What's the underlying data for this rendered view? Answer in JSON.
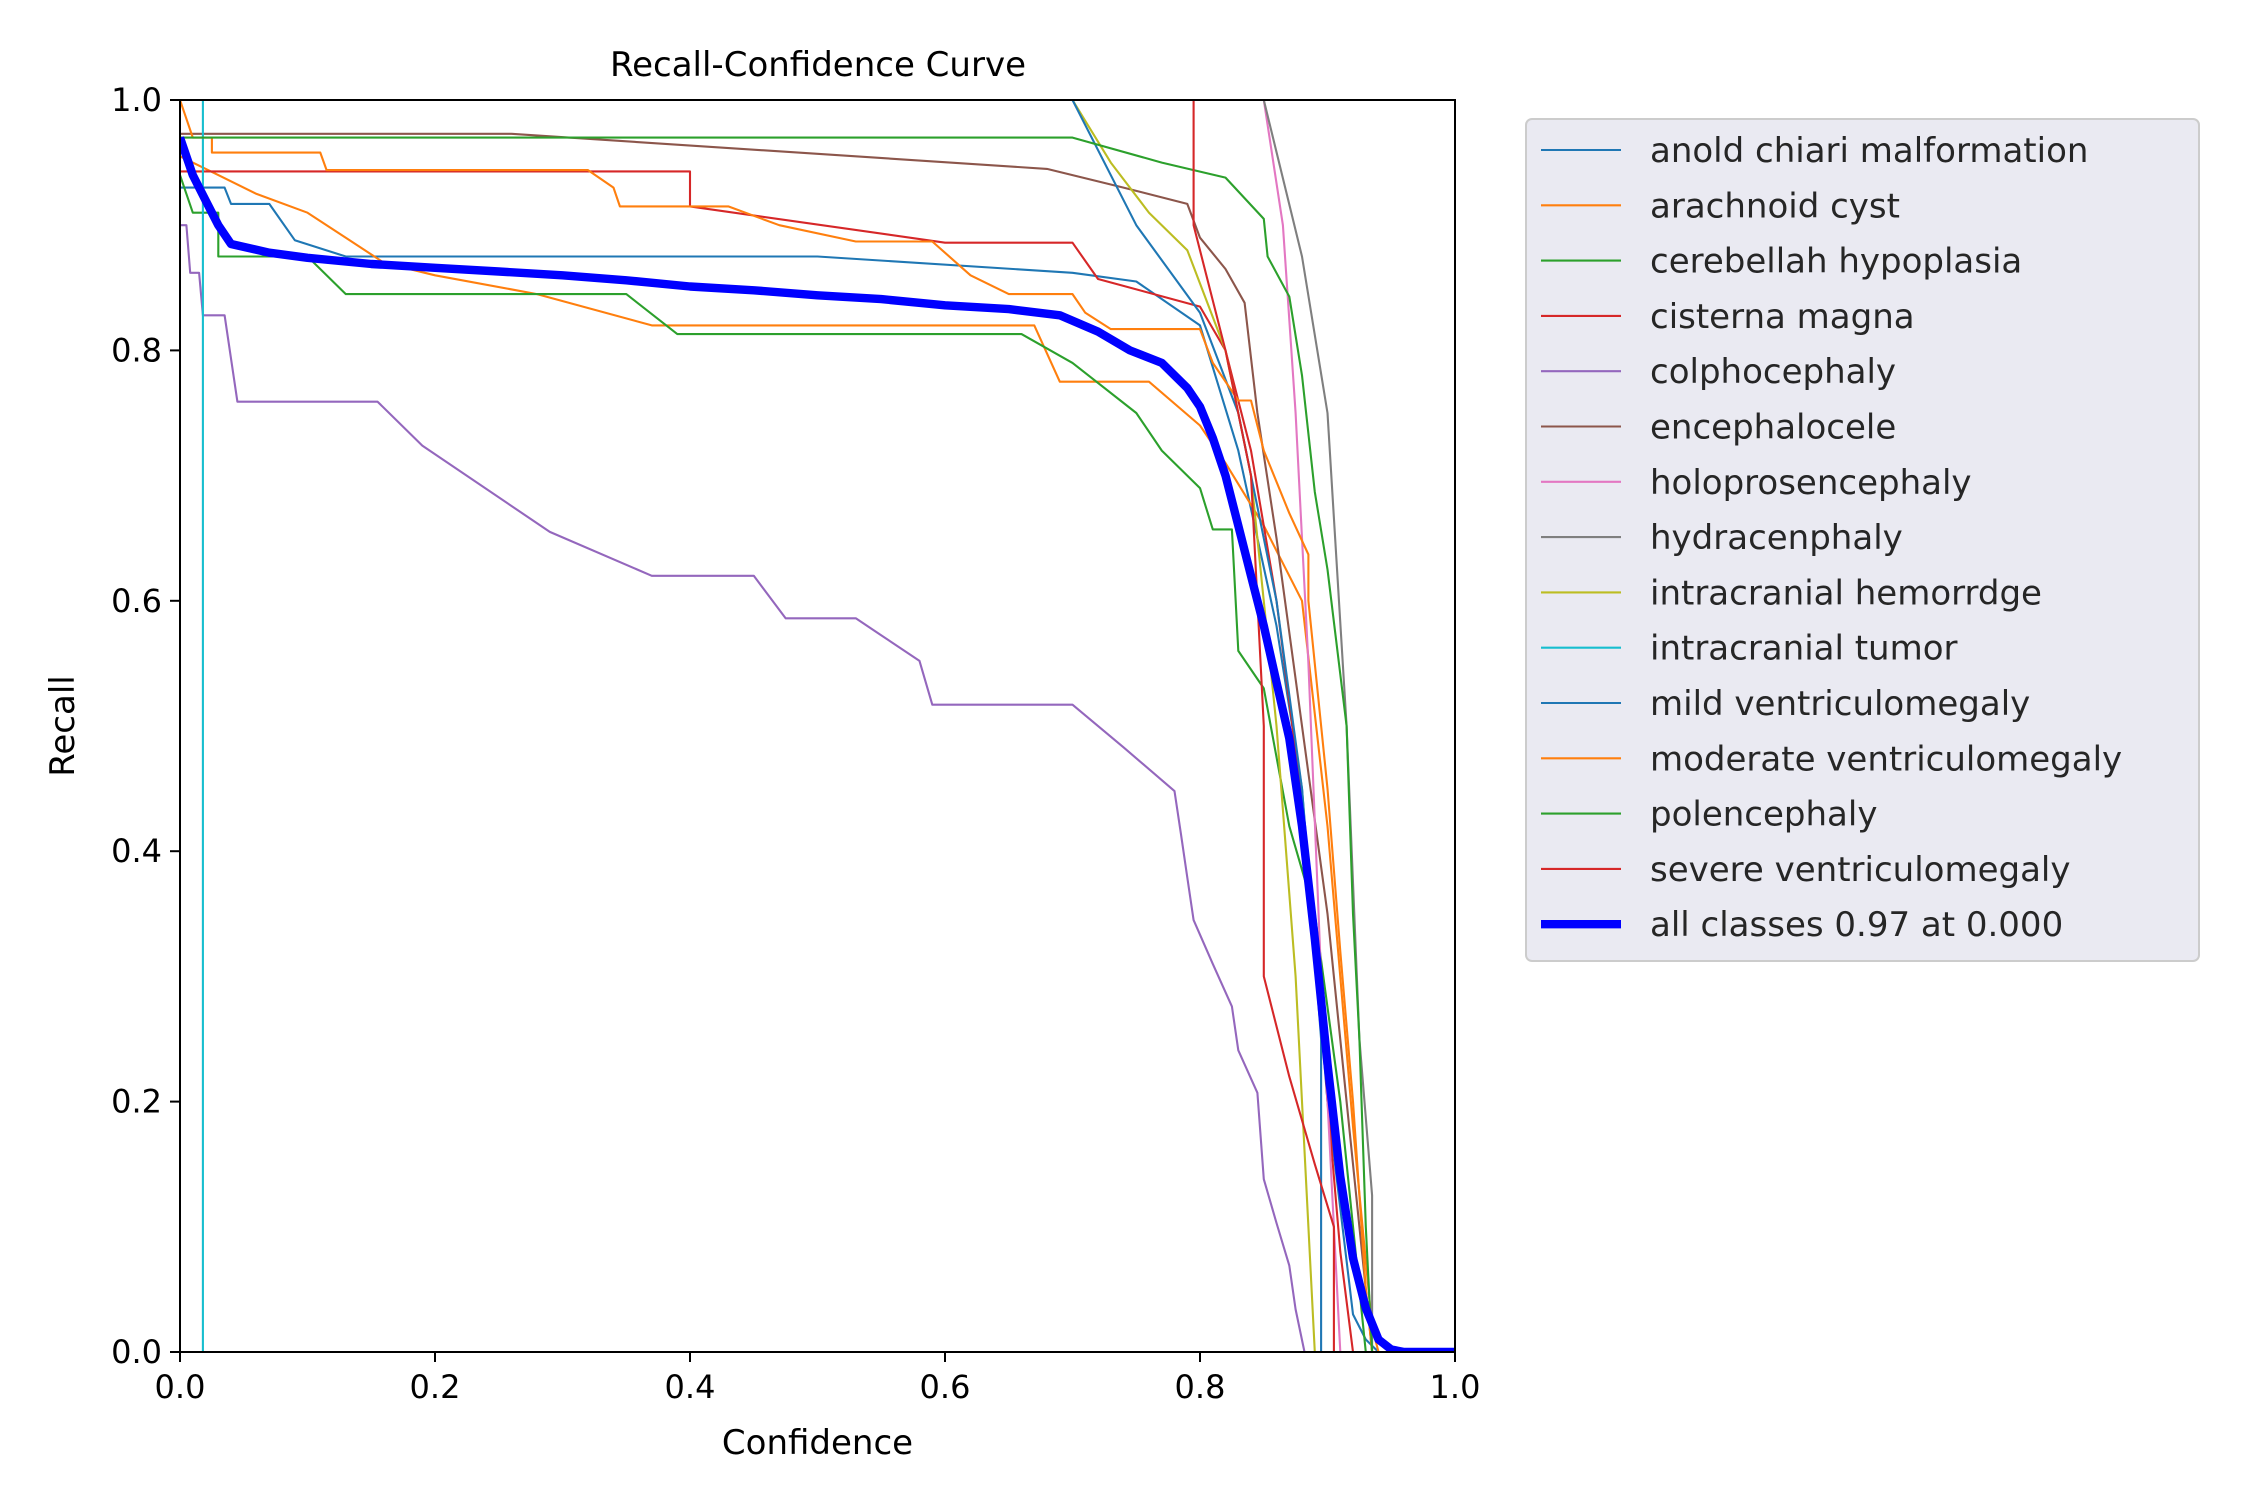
{
  "chart_data": {
    "type": "line",
    "title": "Recall-Confidence Curve",
    "xlabel": "Confidence",
    "ylabel": "Recall",
    "xlim": [
      0,
      1
    ],
    "ylim": [
      0,
      1
    ],
    "xticks": [
      "0.0",
      "0.2",
      "0.4",
      "0.6",
      "0.8",
      "1.0"
    ],
    "yticks": [
      "0.0",
      "0.2",
      "0.4",
      "0.6",
      "0.8",
      "1.0"
    ],
    "grid": false,
    "legend": "outside-right",
    "series": [
      {
        "name": "anold chiari malformation",
        "color": "#1f77b4",
        "width": 1.5,
        "points": [
          [
            0,
            0.93
          ],
          [
            0.035,
            0.93
          ],
          [
            0.04,
            0.917
          ],
          [
            0.07,
            0.917
          ],
          [
            0.09,
            0.888
          ],
          [
            0.13,
            0.875
          ],
          [
            0.5,
            0.875
          ],
          [
            0.7,
            0.862
          ],
          [
            0.75,
            0.855
          ],
          [
            0.8,
            0.82
          ],
          [
            0.83,
            0.72
          ],
          [
            0.86,
            0.58
          ],
          [
            0.88,
            0.45
          ],
          [
            0.9,
            0.2
          ],
          [
            0.92,
            0.03
          ],
          [
            0.93,
            0.01
          ],
          [
            0.94,
            0
          ],
          [
            1,
            0
          ]
        ]
      },
      {
        "name": "arachnoid cyst",
        "color": "#ff7f0e",
        "width": 1.5,
        "points": [
          [
            0,
            0.955
          ],
          [
            0.03,
            0.94
          ],
          [
            0.06,
            0.925
          ],
          [
            0.1,
            0.91
          ],
          [
            0.13,
            0.89
          ],
          [
            0.16,
            0.87
          ],
          [
            0.2,
            0.86
          ],
          [
            0.28,
            0.845
          ],
          [
            0.37,
            0.82
          ],
          [
            0.67,
            0.82
          ],
          [
            0.69,
            0.775
          ],
          [
            0.76,
            0.775
          ],
          [
            0.8,
            0.74
          ],
          [
            0.82,
            0.71
          ],
          [
            0.85,
            0.66
          ],
          [
            0.88,
            0.6
          ],
          [
            0.9,
            0.42
          ],
          [
            0.92,
            0.18
          ],
          [
            0.935,
            0.02
          ],
          [
            0.94,
            0
          ],
          [
            1,
            0
          ]
        ]
      },
      {
        "name": "cerebellah hypoplasia",
        "color": "#2ca02c",
        "width": 1.5,
        "points": [
          [
            0,
            0.94
          ],
          [
            0.01,
            0.91
          ],
          [
            0.03,
            0.91
          ],
          [
            0.03,
            0.875
          ],
          [
            0.1,
            0.875
          ],
          [
            0.13,
            0.845
          ],
          [
            0.35,
            0.845
          ],
          [
            0.39,
            0.813
          ],
          [
            0.66,
            0.813
          ],
          [
            0.7,
            0.79
          ],
          [
            0.75,
            0.75
          ],
          [
            0.77,
            0.72
          ],
          [
            0.8,
            0.69
          ],
          [
            0.81,
            0.657
          ],
          [
            0.825,
            0.657
          ],
          [
            0.83,
            0.56
          ],
          [
            0.85,
            0.53
          ],
          [
            0.87,
            0.42
          ],
          [
            0.89,
            0.35
          ],
          [
            0.91,
            0.2
          ],
          [
            0.925,
            0.05
          ],
          [
            0.93,
            0
          ],
          [
            1,
            0
          ]
        ]
      },
      {
        "name": "cisterna magna",
        "color": "#d62728",
        "width": 1.5,
        "points": [
          [
            0,
            0.943
          ],
          [
            0.4,
            0.943
          ],
          [
            0.4,
            0.915
          ],
          [
            0.6,
            0.886
          ],
          [
            0.7,
            0.886
          ],
          [
            0.72,
            0.857
          ],
          [
            0.8,
            0.835
          ],
          [
            0.82,
            0.8
          ],
          [
            0.84,
            0.72
          ],
          [
            0.86,
            0.6
          ],
          [
            0.875,
            0.48
          ],
          [
            0.89,
            0.35
          ],
          [
            0.9,
            0.2
          ],
          [
            0.91,
            0.08
          ],
          [
            0.92,
            0
          ],
          [
            1,
            0
          ]
        ]
      },
      {
        "name": "colphocephaly",
        "color": "#9467bd",
        "width": 1.5,
        "points": [
          [
            0,
            0.9
          ],
          [
            0.005,
            0.9
          ],
          [
            0.008,
            0.862
          ],
          [
            0.015,
            0.862
          ],
          [
            0.018,
            0.828
          ],
          [
            0.035,
            0.828
          ],
          [
            0.045,
            0.759
          ],
          [
            0.155,
            0.759
          ],
          [
            0.19,
            0.724
          ],
          [
            0.29,
            0.655
          ],
          [
            0.37,
            0.62
          ],
          [
            0.45,
            0.62
          ],
          [
            0.475,
            0.586
          ],
          [
            0.53,
            0.586
          ],
          [
            0.58,
            0.552
          ],
          [
            0.59,
            0.517
          ],
          [
            0.7,
            0.517
          ],
          [
            0.74,
            0.483
          ],
          [
            0.78,
            0.448
          ],
          [
            0.785,
            0.414
          ],
          [
            0.79,
            0.379
          ],
          [
            0.795,
            0.345
          ],
          [
            0.81,
            0.31
          ],
          [
            0.825,
            0.276
          ],
          [
            0.83,
            0.241
          ],
          [
            0.845,
            0.207
          ],
          [
            0.85,
            0.138
          ],
          [
            0.86,
            0.103
          ],
          [
            0.87,
            0.069
          ],
          [
            0.875,
            0.034
          ],
          [
            0.882,
            0
          ],
          [
            1,
            0
          ]
        ]
      },
      {
        "name": "encephalocele",
        "color": "#8c564b",
        "width": 1.5,
        "points": [
          [
            0,
            0.973
          ],
          [
            0.26,
            0.973
          ],
          [
            0.68,
            0.945
          ],
          [
            0.74,
            0.93
          ],
          [
            0.79,
            0.917
          ],
          [
            0.8,
            0.89
          ],
          [
            0.82,
            0.865
          ],
          [
            0.835,
            0.838
          ],
          [
            0.845,
            0.75
          ],
          [
            0.86,
            0.65
          ],
          [
            0.88,
            0.5
          ],
          [
            0.9,
            0.35
          ],
          [
            0.915,
            0.2
          ],
          [
            0.93,
            0.05
          ],
          [
            0.935,
            0
          ],
          [
            1,
            0
          ]
        ]
      },
      {
        "name": "holoprosencephaly",
        "color": "#e377c2",
        "width": 1.5,
        "points": [
          [
            0.85,
            1.0
          ],
          [
            0.865,
            0.9
          ],
          [
            0.875,
            0.75
          ],
          [
            0.885,
            0.55
          ],
          [
            0.895,
            0.3
          ],
          [
            0.905,
            0.1
          ],
          [
            0.91,
            0
          ],
          [
            1,
            0
          ]
        ]
      },
      {
        "name": "hydracenphaly",
        "color": "#7f7f7f",
        "width": 1.5,
        "points": [
          [
            0.85,
            1.0
          ],
          [
            0.88,
            0.875
          ],
          [
            0.9,
            0.75
          ],
          [
            0.915,
            0.5
          ],
          [
            0.925,
            0.25
          ],
          [
            0.935,
            0.125
          ],
          [
            0.935,
            0
          ],
          [
            1,
            0
          ]
        ]
      },
      {
        "name": "intracranial hemorrdge",
        "color": "#bcbd22",
        "width": 1.5,
        "points": [
          [
            0.7,
            1.0
          ],
          [
            0.73,
            0.95
          ],
          [
            0.76,
            0.91
          ],
          [
            0.79,
            0.88
          ],
          [
            0.82,
            0.8
          ],
          [
            0.84,
            0.7
          ],
          [
            0.86,
            0.5
          ],
          [
            0.875,
            0.3
          ],
          [
            0.885,
            0.1
          ],
          [
            0.89,
            0
          ],
          [
            1,
            0
          ]
        ]
      },
      {
        "name": "intracranial tumor",
        "color": "#17becf",
        "width": 1.5,
        "points": [
          [
            0,
            1.0
          ],
          [
            0.018,
            1.0
          ],
          [
            0.018,
            0
          ],
          [
            1,
            0
          ]
        ]
      },
      {
        "name": "mild ventriculomegaly",
        "color": "#1f77b4",
        "width": 1.5,
        "points": [
          [
            0.7,
            1.0
          ],
          [
            0.75,
            0.9
          ],
          [
            0.8,
            0.83
          ],
          [
            0.83,
            0.75
          ],
          [
            0.86,
            0.6
          ],
          [
            0.88,
            0.45
          ],
          [
            0.895,
            0.25
          ],
          [
            0.895,
            0
          ],
          [
            1,
            0
          ]
        ]
      },
      {
        "name": "moderate ventriculomegaly",
        "color": "#ff7f0e",
        "width": 1.5,
        "points": [
          [
            0,
            1.0
          ],
          [
            0.01,
            0.97
          ],
          [
            0.025,
            0.97
          ],
          [
            0.025,
            0.958
          ],
          [
            0.11,
            0.958
          ],
          [
            0.115,
            0.944
          ],
          [
            0.32,
            0.944
          ],
          [
            0.34,
            0.93
          ],
          [
            0.345,
            0.915
          ],
          [
            0.43,
            0.915
          ],
          [
            0.47,
            0.9
          ],
          [
            0.53,
            0.887
          ],
          [
            0.59,
            0.887
          ],
          [
            0.62,
            0.86
          ],
          [
            0.65,
            0.845
          ],
          [
            0.7,
            0.845
          ],
          [
            0.71,
            0.83
          ],
          [
            0.73,
            0.817
          ],
          [
            0.8,
            0.817
          ],
          [
            0.81,
            0.79
          ],
          [
            0.83,
            0.76
          ],
          [
            0.84,
            0.76
          ],
          [
            0.85,
            0.72
          ],
          [
            0.87,
            0.67
          ],
          [
            0.885,
            0.637
          ],
          [
            0.885,
            0.6
          ],
          [
            0.9,
            0.45
          ],
          [
            0.91,
            0.32
          ],
          [
            0.92,
            0.2
          ],
          [
            0.93,
            0.05
          ],
          [
            0.935,
            0
          ],
          [
            1,
            0
          ]
        ]
      },
      {
        "name": "polencephaly",
        "color": "#2ca02c",
        "width": 1.5,
        "points": [
          [
            0,
            0.97
          ],
          [
            0.7,
            0.97
          ],
          [
            0.77,
            0.95
          ],
          [
            0.82,
            0.938
          ],
          [
            0.85,
            0.905
          ],
          [
            0.853,
            0.875
          ],
          [
            0.87,
            0.843
          ],
          [
            0.88,
            0.78
          ],
          [
            0.89,
            0.687
          ],
          [
            0.9,
            0.625
          ],
          [
            0.915,
            0.5
          ],
          [
            0.92,
            0.35
          ],
          [
            0.925,
            0.25
          ],
          [
            0.93,
            0.1
          ],
          [
            0.935,
            0
          ],
          [
            1,
            0
          ]
        ]
      },
      {
        "name": "severe ventriculomegaly",
        "color": "#d62728",
        "width": 1.5,
        "points": [
          [
            0.795,
            1.0
          ],
          [
            0.795,
            0.9
          ],
          [
            0.82,
            0.8
          ],
          [
            0.84,
            0.7
          ],
          [
            0.85,
            0.5
          ],
          [
            0.85,
            0.3
          ],
          [
            0.87,
            0.22
          ],
          [
            0.89,
            0.15
          ],
          [
            0.905,
            0.1
          ],
          [
            0.905,
            0
          ],
          [
            1,
            0
          ]
        ]
      },
      {
        "name": "all classes 0.97 at 0.000",
        "color": "#0000ff",
        "width": 6,
        "points": [
          [
            0,
            0.97
          ],
          [
            0.01,
            0.94
          ],
          [
            0.02,
            0.92
          ],
          [
            0.03,
            0.9
          ],
          [
            0.04,
            0.885
          ],
          [
            0.07,
            0.878
          ],
          [
            0.1,
            0.874
          ],
          [
            0.15,
            0.869
          ],
          [
            0.2,
            0.866
          ],
          [
            0.25,
            0.863
          ],
          [
            0.3,
            0.86
          ],
          [
            0.35,
            0.856
          ],
          [
            0.4,
            0.851
          ],
          [
            0.45,
            0.848
          ],
          [
            0.5,
            0.844
          ],
          [
            0.55,
            0.841
          ],
          [
            0.6,
            0.836
          ],
          [
            0.65,
            0.833
          ],
          [
            0.69,
            0.828
          ],
          [
            0.72,
            0.815
          ],
          [
            0.745,
            0.8
          ],
          [
            0.77,
            0.79
          ],
          [
            0.79,
            0.77
          ],
          [
            0.8,
            0.755
          ],
          [
            0.81,
            0.73
          ],
          [
            0.82,
            0.7
          ],
          [
            0.83,
            0.66
          ],
          [
            0.84,
            0.62
          ],
          [
            0.85,
            0.58
          ],
          [
            0.86,
            0.535
          ],
          [
            0.87,
            0.49
          ],
          [
            0.88,
            0.42
          ],
          [
            0.89,
            0.33
          ],
          [
            0.9,
            0.23
          ],
          [
            0.91,
            0.14
          ],
          [
            0.92,
            0.075
          ],
          [
            0.93,
            0.035
          ],
          [
            0.94,
            0.01
          ],
          [
            0.95,
            0.002
          ],
          [
            0.96,
            0
          ],
          [
            1,
            0
          ]
        ]
      }
    ]
  }
}
